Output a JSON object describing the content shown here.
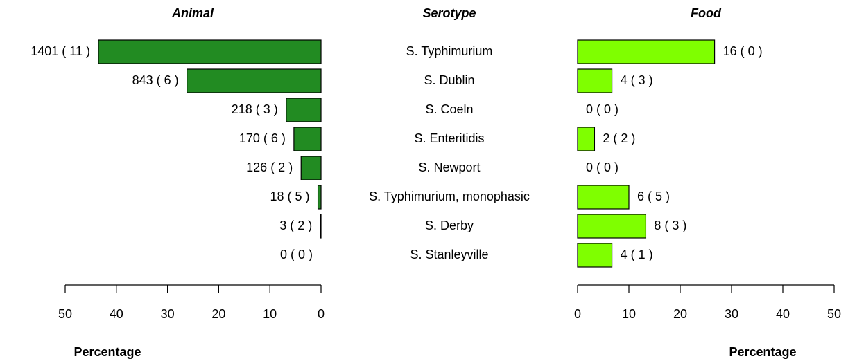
{
  "serotype": {
    "title": "Serotype",
    "categories": [
      "S. Typhimurium",
      "S. Dublin",
      "S. Coeln",
      "S. Enteritidis",
      "S. Newport",
      "S. Typhimurium, monophasic",
      "S. Derby",
      "S. Stanleyville"
    ]
  },
  "chart_data": [
    {
      "type": "bar",
      "orientation": "horizontal",
      "title": "Animal",
      "xlabel": "Percentage",
      "reversed": true,
      "color": "#228b22",
      "values": [
        43.5,
        26.2,
        6.8,
        5.3,
        3.9,
        0.6,
        0.1,
        0
      ],
      "value_labels": [
        "1401 ( 11 )",
        "843 ( 6 )",
        "218 ( 3 )",
        "170 ( 6 )",
        "126 ( 2 )",
        "18 ( 5 )",
        "3 ( 2 )",
        "0 ( 0 )"
      ],
      "xlim": [
        0,
        50
      ],
      "xticks": [
        0,
        10,
        20,
        30,
        40,
        50
      ]
    },
    {
      "type": "bar",
      "orientation": "horizontal",
      "title": "Food",
      "xlabel": "Percentage",
      "reversed": false,
      "color": "#7fff00",
      "values": [
        26.7,
        6.7,
        0,
        3.3,
        0,
        10,
        13.3,
        6.7
      ],
      "value_labels": [
        "16 ( 0 )",
        "4 ( 3 )",
        "0 ( 0 )",
        "2 ( 2 )",
        "0 ( 0 )",
        "6 ( 5 )",
        "8 ( 3 )",
        "4 ( 1 )"
      ],
      "xlim": [
        0,
        50
      ],
      "xticks": [
        0,
        10,
        20,
        30,
        40,
        50
      ]
    }
  ]
}
